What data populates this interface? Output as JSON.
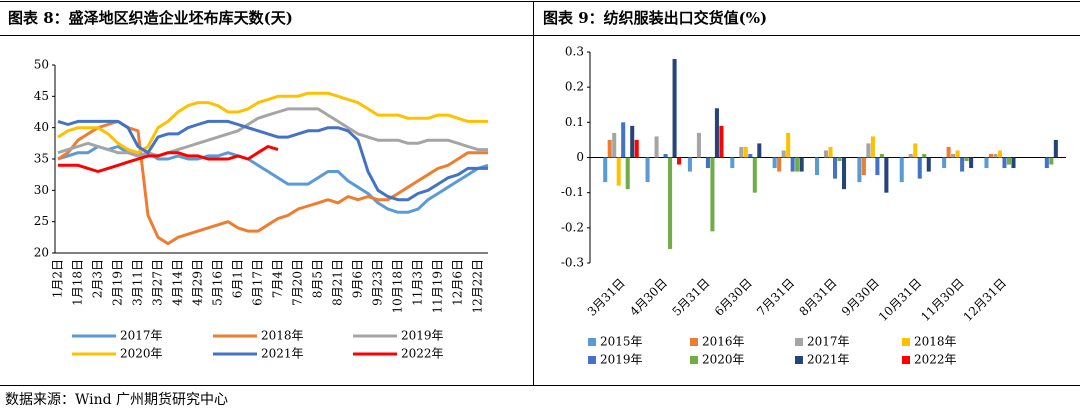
{
  "chart_data": [
    {
      "type": "line",
      "title": "图表 8：盛泽地区织造企业坯布库天数(天)",
      "categories": [
        "1月2日",
        null,
        "1月18日",
        null,
        "2月3日",
        null,
        "2月19日",
        null,
        "3月11日",
        null,
        "3月27日",
        null,
        "4月14日",
        null,
        "4月29日",
        null,
        "5月16日",
        null,
        "6月1日",
        null,
        "6月17日",
        null,
        "7月4日",
        null,
        "7月20日",
        null,
        "8月5日",
        null,
        "8月21日",
        null,
        "9月6日",
        null,
        "9月23日",
        null,
        "10月18日",
        null,
        "11月3日",
        null,
        "11月19日",
        null,
        "12月6日",
        null,
        "12月22日",
        null
      ],
      "ylim": [
        20,
        50
      ],
      "yticks": [
        20,
        25,
        30,
        35,
        40,
        45,
        50
      ],
      "grid": false,
      "series": [
        {
          "name": "2017年",
          "color": "#5b9bd5",
          "values": [
            35,
            35.5,
            36,
            36,
            37,
            36.5,
            37,
            36,
            35.5,
            36,
            35,
            35,
            35.5,
            35,
            35,
            35.5,
            35.5,
            36,
            35.5,
            35,
            34,
            33,
            32,
            31,
            31,
            31,
            32,
            33,
            33,
            31.5,
            30.5,
            29.5,
            28,
            27,
            26.5,
            26.5,
            27,
            28.5,
            29.5,
            30.5,
            31.5,
            32.5,
            33.5,
            34
          ]
        },
        {
          "name": "2018年",
          "color": "#ed7d31",
          "values": [
            35,
            36,
            38,
            39,
            40,
            40.5,
            41,
            40,
            39.5,
            26,
            22.5,
            21.5,
            22.5,
            23,
            23.5,
            24,
            24.5,
            25,
            24,
            23.5,
            23.5,
            24.5,
            25.5,
            26,
            27,
            27.5,
            28,
            28.5,
            28,
            29,
            28.5,
            29,
            28.5,
            28.5,
            29.5,
            30.5,
            31.5,
            32.5,
            33.5,
            34,
            35,
            36,
            36,
            36
          ]
        },
        {
          "name": "2019年",
          "color": "#a5a5a5",
          "values": [
            36,
            36.5,
            37,
            37.5,
            37,
            36.5,
            36,
            36,
            35.5,
            36,
            35.5,
            36,
            36.5,
            37,
            37.5,
            38,
            38.5,
            39,
            39.5,
            40.5,
            41.5,
            42,
            42.5,
            43,
            43,
            43,
            43,
            42,
            41,
            40,
            39,
            38.5,
            38,
            38,
            38,
            37.5,
            37.5,
            38,
            38,
            38,
            37.5,
            37,
            36.5,
            36.5
          ]
        },
        {
          "name": "2020年",
          "color": "#ffc000",
          "values": [
            38.5,
            39.5,
            40,
            40,
            40,
            39,
            37.5,
            36.5,
            36,
            37,
            40,
            41,
            42.5,
            43.5,
            44,
            44,
            43.5,
            42.5,
            42.5,
            43,
            44,
            44.5,
            45,
            45,
            45,
            45.5,
            45.5,
            45.5,
            45,
            44.5,
            44,
            43,
            42,
            42,
            42,
            41.5,
            41.5,
            41.5,
            42,
            42,
            41.5,
            41,
            41,
            41
          ]
        },
        {
          "name": "2021年",
          "color": "#4472c4",
          "values": [
            41,
            40.5,
            41,
            41,
            41,
            41,
            41,
            40,
            37,
            36,
            38.5,
            39,
            39,
            40,
            40.5,
            41,
            41,
            41,
            40.5,
            40,
            39.5,
            39,
            38.5,
            38.5,
            39,
            39.5,
            39.5,
            40,
            40,
            39.5,
            38,
            33,
            30,
            29,
            28.5,
            28.5,
            29.5,
            30,
            31,
            32,
            32.5,
            33.5,
            33.5,
            33.5
          ]
        },
        {
          "name": "2022年",
          "color": "#ff0000",
          "values": [
            34,
            34,
            34,
            33.5,
            33,
            33.5,
            34,
            34.5,
            35,
            35.5,
            35.5,
            36,
            36,
            35.5,
            35.5,
            35,
            35,
            35,
            35.5,
            35,
            36,
            37,
            36.5,
            null,
            null,
            null,
            null,
            null,
            null,
            null,
            null,
            null,
            null,
            null,
            null,
            null,
            null,
            null,
            null,
            null,
            null,
            null,
            null,
            null
          ]
        }
      ]
    },
    {
      "type": "bar",
      "title": "图表 9：纺织服装出口交货值(%)",
      "categories": [
        "3月31日",
        "4月30日",
        "5月31日",
        "6月30日",
        "7月31日",
        "8月31日",
        "9月30日",
        "10月31日",
        "11月30日",
        "12月31日",
        null
      ],
      "ylim": [
        -0.3,
        0.3
      ],
      "yticks": [
        -0.3,
        -0.2,
        -0.1,
        0,
        0.1,
        0.2,
        0.3
      ],
      "grid": false,
      "series": [
        {
          "name": "2015年",
          "color": "#5b9bd5",
          "values": [
            -0.07,
            -0.07,
            -0.04,
            -0.03,
            -0.03,
            -0.05,
            -0.07,
            -0.07,
            -0.03,
            -0.03,
            null
          ]
        },
        {
          "name": "2016年",
          "color": "#ed7d31",
          "values": [
            0.05,
            null,
            null,
            null,
            -0.04,
            null,
            -0.05,
            null,
            0.03,
            0.01,
            null
          ]
        },
        {
          "name": "2017年",
          "color": "#a5a5a5",
          "values": [
            0.07,
            0.06,
            0.07,
            0.03,
            0.02,
            0.02,
            0.04,
            0.01,
            0.01,
            0.01,
            null
          ]
        },
        {
          "name": "2018年",
          "color": "#ffc000",
          "values": [
            -0.08,
            null,
            null,
            0.03,
            0.07,
            0.03,
            0.06,
            0.04,
            0.02,
            0.02,
            null
          ]
        },
        {
          "name": "2019年",
          "color": "#4472c4",
          "values": [
            0.1,
            0.01,
            -0.03,
            0.01,
            -0.04,
            -0.06,
            -0.05,
            -0.06,
            -0.04,
            -0.03,
            -0.03
          ]
        },
        {
          "name": "2020年",
          "color": "#70ad47",
          "values": [
            -0.09,
            -0.26,
            -0.21,
            -0.1,
            -0.04,
            -0.01,
            0.01,
            0.01,
            -0.01,
            -0.02,
            -0.02
          ]
        },
        {
          "name": "2021年",
          "color": "#264478",
          "values": [
            0.09,
            0.28,
            0.14,
            0.04,
            -0.04,
            -0.09,
            -0.1,
            -0.04,
            -0.03,
            -0.03,
            0.05
          ]
        },
        {
          "name": "2022年",
          "color": "#ff0000",
          "values": [
            0.05,
            -0.02,
            0.09,
            null,
            null,
            null,
            null,
            null,
            null,
            null,
            null
          ]
        }
      ]
    }
  ],
  "source": "数据来源：Wind 广州期货研究中心"
}
